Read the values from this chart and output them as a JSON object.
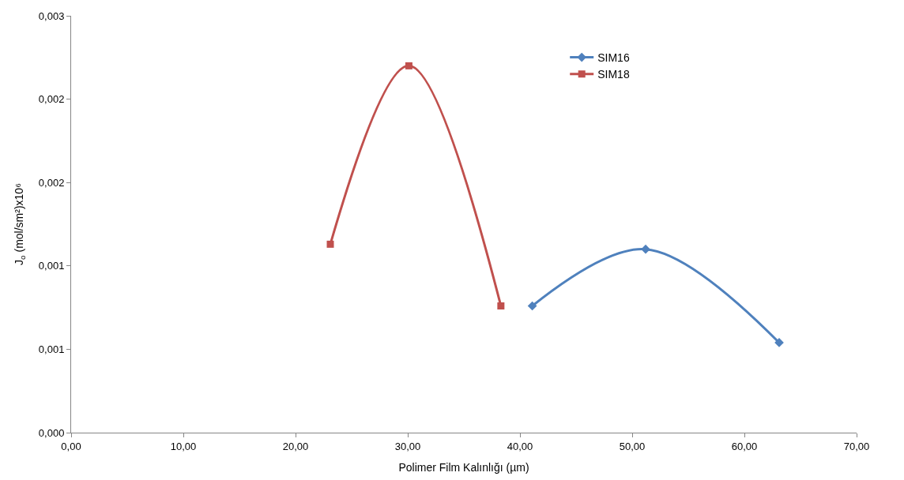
{
  "chart_data": {
    "type": "line",
    "xlabel": "Polimer Film Kalınlığı (µm)",
    "ylabel": "J$_{o}$ (mol/sm²)x10⁶",
    "series": [
      {
        "name": "SIM16",
        "color": "#4f81bd",
        "marker": "diamond",
        "x": [
          41.1,
          51.2,
          63.1
        ],
        "values": [
          0.00076,
          0.0011,
          0.00054
        ]
      },
      {
        "name": "SIM18",
        "color": "#c0504d",
        "marker": "square",
        "x": [
          23.1,
          30.1,
          38.3
        ],
        "values": [
          0.00113,
          0.0022,
          0.00076
        ]
      }
    ],
    "xlim": [
      0,
      70
    ],
    "xticks": [
      {
        "value": 0,
        "label": "0,00"
      },
      {
        "value": 10,
        "label": "10,00"
      },
      {
        "value": 20,
        "label": "20,00"
      },
      {
        "value": 30,
        "label": "30,00"
      },
      {
        "value": 40,
        "label": "40,00"
      },
      {
        "value": 50,
        "label": "50,00"
      },
      {
        "value": 60,
        "label": "60,00"
      },
      {
        "value": 70,
        "label": "70,00"
      }
    ],
    "ylim": [
      0,
      0.0025
    ],
    "yticks": [
      {
        "value": 0,
        "label": "0,000"
      },
      {
        "value": 0.0005,
        "label": "0,001"
      },
      {
        "value": 0.001,
        "label": "0,001"
      },
      {
        "value": 0.0015,
        "label": "0,002"
      },
      {
        "value": 0.002,
        "label": "0,002"
      },
      {
        "value": 0.0025,
        "label": "0,003"
      }
    ],
    "legend": "top right"
  }
}
